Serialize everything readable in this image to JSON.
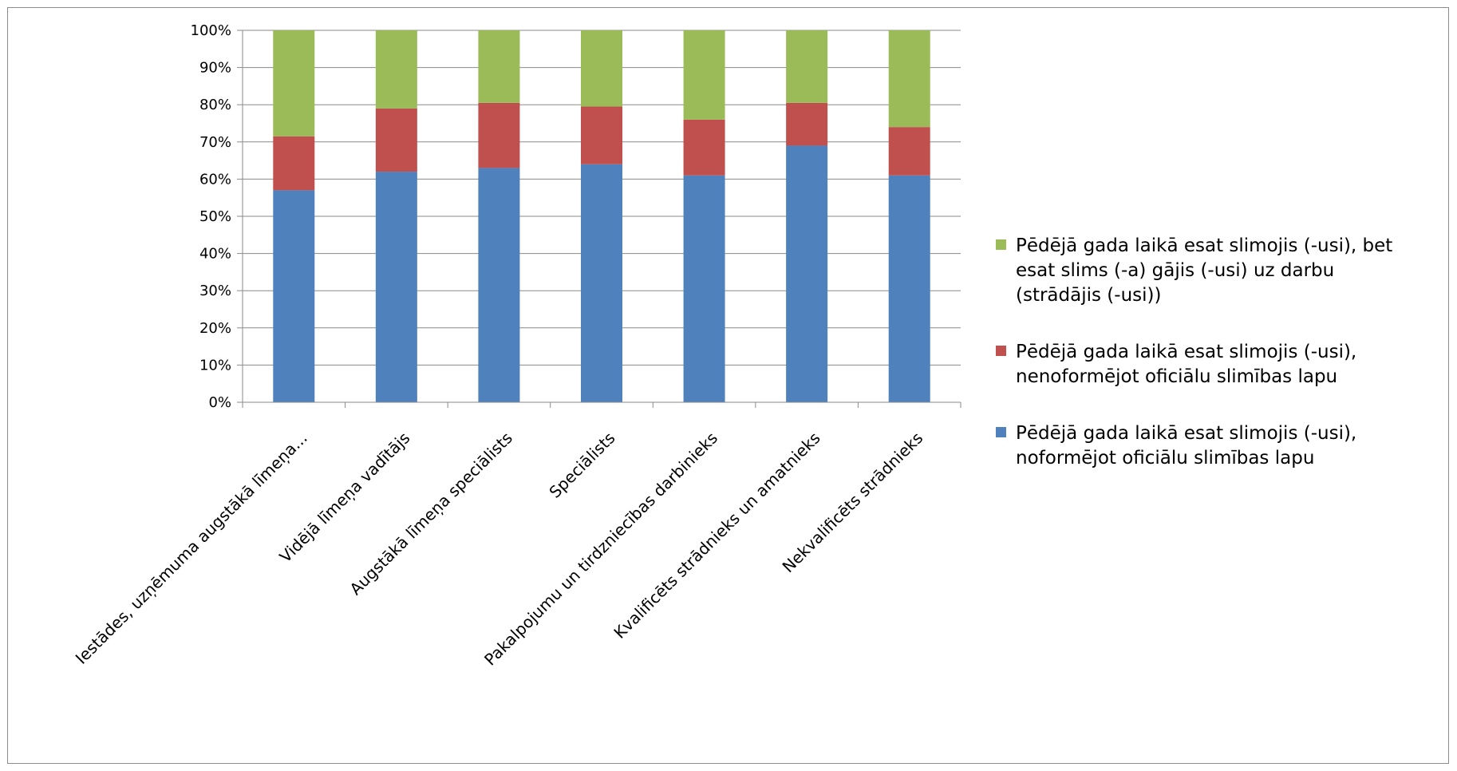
{
  "chart_data": {
    "type": "bar",
    "stacked": true,
    "categories": [
      "Iestādes, uzņēmuma augstākā līmeņa...",
      "Vidējā līmeņa vadītājs",
      "Augstākā līmeņa speciālists",
      "Speciālists",
      "Pakalpojumu un tirdzniecības darbinieks",
      "Kvalificēts strādnieks un amatnieks",
      "Nekvalificēts strādnieks"
    ],
    "series": [
      {
        "name": "Pēdējā gada laikā esat slimojis (-usi), noformējot oficiālu slimības lapu",
        "legend_lines": [
          "Pēdējā gada laikā esat slimojis (-usi),",
          "noformējot oficiālu slimības lapu"
        ],
        "color": "#4f81bd",
        "values": [
          57,
          62,
          63,
          64,
          61,
          69,
          61
        ]
      },
      {
        "name": "Pēdējā gada laikā esat slimojis (-usi), nenoformējot oficiālu slimības lapu",
        "legend_lines": [
          "Pēdējā gada laikā esat slimojis (-usi),",
          "nenoformējot oficiālu slimības lapu"
        ],
        "color": "#c0504d",
        "values": [
          14.5,
          17,
          17.5,
          15.5,
          15,
          11.5,
          13
        ]
      },
      {
        "name": "Pēdējā gada laikā esat slimojis (-usi), bet esat slims (-a) gājis (-usi) uz darbu (strādājis (-usi))",
        "legend_lines": [
          "Pēdējā gada laikā esat slimojis (-usi), bet",
          "esat slims (-a) gājis (-usi) uz darbu",
          "(strādājis (-usi))"
        ],
        "color": "#9bbb59",
        "values": [
          28.5,
          21,
          19.5,
          20.5,
          24,
          19.5,
          26
        ]
      }
    ],
    "y_ticks": [
      "0%",
      "10%",
      "20%",
      "30%",
      "40%",
      "50%",
      "60%",
      "70%",
      "80%",
      "90%",
      "100%"
    ],
    "ylim": [
      0,
      100
    ],
    "grid": true,
    "legend_position": "right"
  }
}
